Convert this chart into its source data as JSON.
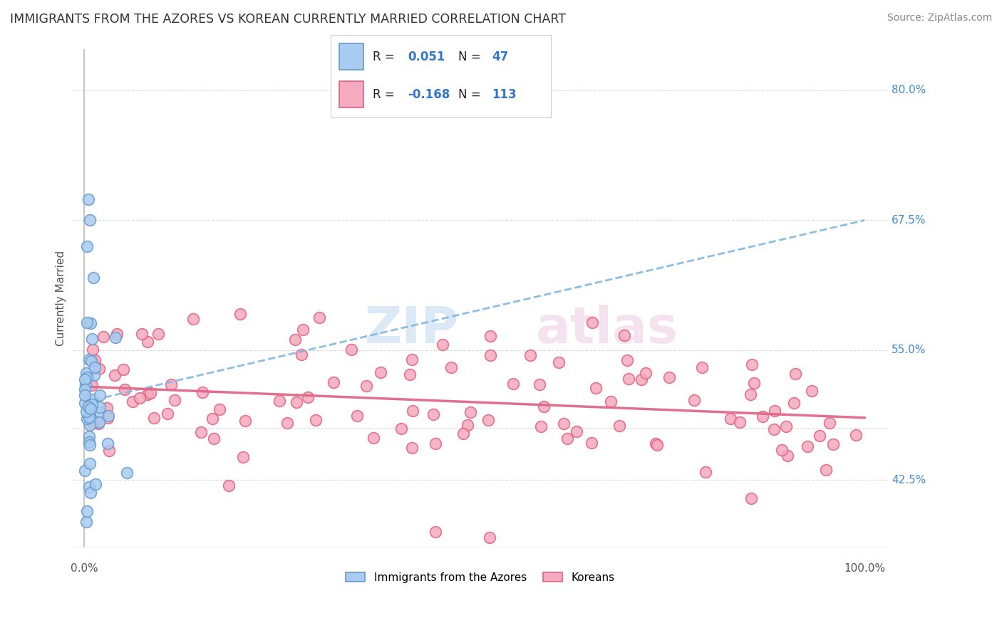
{
  "title": "IMMIGRANTS FROM THE AZORES VS KOREAN CURRENTLY MARRIED CORRELATION CHART",
  "source": "Source: ZipAtlas.com",
  "ylabel": "Currently Married",
  "color_azores_face": "#a8ccf0",
  "color_azores_edge": "#6699cc",
  "color_korean_face": "#f5aabf",
  "color_korean_edge": "#e06080",
  "color_line_azores": "#80b8e0",
  "color_line_korean": "#e06888",
  "color_grid": "#cccccc",
  "color_right_labels": "#4488cc",
  "color_title": "#333333",
  "color_source": "#888888",
  "color_ylabel": "#555555",
  "color_border": "#bbbbbb",
  "y_gridlines": [
    42.5,
    47.5,
    55.0,
    67.5,
    80.0
  ],
  "y_right_labels": {
    "42.5": "42.5%",
    "55.0": "55.0%",
    "67.5": "67.5%",
    "80.0": "80.0%"
  },
  "xlim": [
    -1.5,
    103
  ],
  "ylim": [
    36,
    84
  ],
  "title_fontsize": 12.5,
  "source_fontsize": 10,
  "label_fontsize": 11,
  "legend_fontsize": 12,
  "watermark_zip_color": "#cce0f5",
  "watermark_atlas_color": "#f0d8e8",
  "legend_r1_prefix": "R = ",
  "legend_r1_value": "0.051",
  "legend_r1_n_label": "N = ",
  "legend_r1_n_value": "47",
  "legend_r2_prefix": "R = ",
  "legend_r2_value": "-0.168",
  "legend_r2_n_label": "N = ",
  "legend_r2_n_value": "113",
  "legend_text_color": "#222222",
  "legend_value_color": "#3377cc",
  "bottom_legend_labels": [
    "Immigrants from the Azores",
    "Koreans"
  ]
}
